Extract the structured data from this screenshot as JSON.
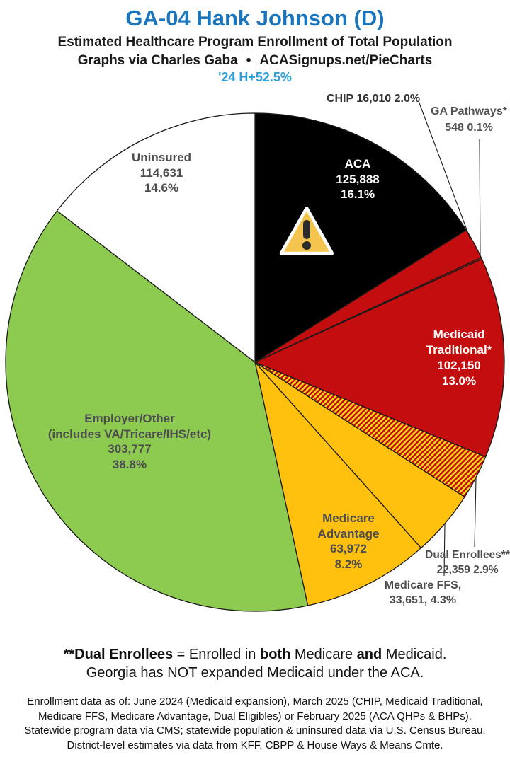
{
  "header": {
    "title": "GA-04 Hank Johnson (D)",
    "subtitle": "Estimated Healthcare Program Enrollment of Total Population",
    "credit_left": "Graphs via Charles Gaba",
    "credit_bullet": "•",
    "credit_right": "ACASignups.net/PieCharts",
    "partisan_lean": "'24 H+52.5%"
  },
  "chart_data": {
    "type": "pie",
    "title": "Estimated Healthcare Program Enrollment of Total Population",
    "start_position": "12 o'clock, clockwise",
    "hatch_colors": [
      "#C30D0E",
      "#FFDE17"
    ],
    "slices": [
      {
        "name": "ACA",
        "value": 125888,
        "pct": 16.1,
        "color": "#000000",
        "label_lines": [
          "ACA",
          "125,888",
          "16.1%"
        ]
      },
      {
        "name": "CHIP",
        "value": 16010,
        "pct": 2.0,
        "color": "#C30D0E",
        "label_lines": [
          "CHIP 16,010 2.0%"
        ]
      },
      {
        "name": "GA Pathways",
        "value": 548,
        "pct": 0.1,
        "color": "#C30D0E",
        "label_lines": [
          "GA Pathways*",
          "548 0.1%"
        ]
      },
      {
        "name": "Medicaid Traditional",
        "value": 102150,
        "pct": 13.0,
        "color": "#C30D0E",
        "label_lines": [
          "Medicaid",
          "Traditional*",
          "102,150",
          "13.0%"
        ]
      },
      {
        "name": "Dual Enrollees",
        "value": 22359,
        "pct": 2.9,
        "color": "hatch",
        "label_lines": [
          "Dual Enrollees**",
          "22,359 2.9%"
        ]
      },
      {
        "name": "Medicare FFS",
        "value": 33651,
        "pct": 4.3,
        "color": "#FFC10E",
        "label_lines": [
          "Medicare FFS,",
          "33,651, 4.3%"
        ]
      },
      {
        "name": "Medicare Advantage",
        "value": 63972,
        "pct": 8.2,
        "color": "#FFC10E",
        "label_lines": [
          "Medicare",
          "Advantage",
          "63,972",
          "8.2%"
        ]
      },
      {
        "name": "Employer/Other",
        "value": 303777,
        "pct": 38.8,
        "color": "#8CCB50",
        "label_lines": [
          "Employer/Other",
          "(includes VA/Tricare/IHS/etc)",
          "303,777",
          "38.8%"
        ]
      },
      {
        "name": "Uninsured",
        "value": 114631,
        "pct": 14.6,
        "color": "#FFFFFF",
        "label_lines": [
          "Uninsured",
          "114,631",
          "14.6%"
        ]
      }
    ]
  },
  "icons": {
    "warning_icon": "warning-triangle"
  },
  "footnote": {
    "parts": [
      {
        "text": "**Dual Enrollees"
      },
      {
        "text": " = Enrolled in "
      },
      {
        "text": "both"
      },
      {
        "text": " Medicare "
      },
      {
        "text": "and"
      },
      {
        "text": " Medicaid."
      }
    ],
    "line2": "Georgia has NOT expanded Medicaid under the ACA."
  },
  "disclaimer_lines": [
    "Enrollment data as of: June 2024 (Medicaid expansion), March 2025 (CHIP, Medicaid Traditional,",
    "Medicare FFS, Medicare Advantage, Dual Eligibles) or February 2025 (ACA QHPs & BHPs).",
    "Statewide program data via CMS; statewide population & uninsured data via U.S. Census Bureau.",
    "District-level estimates via data from KFF, CBPP & House Ways & Means Cmte."
  ]
}
